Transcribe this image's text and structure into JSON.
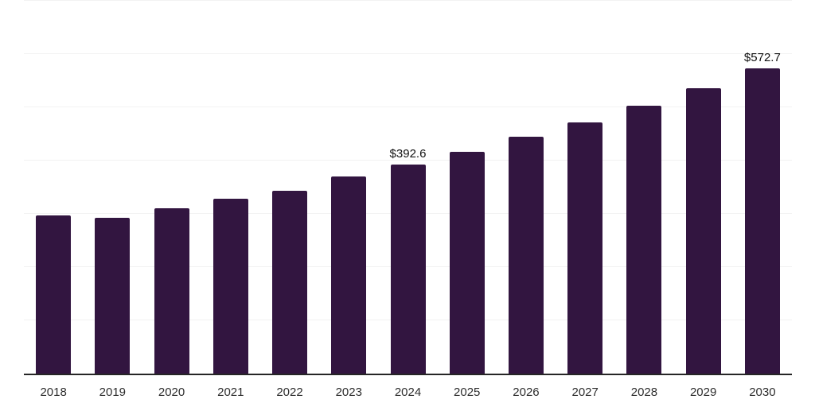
{
  "chart_data": {
    "type": "bar",
    "categories": [
      "2018",
      "2019",
      "2020",
      "2021",
      "2022",
      "2023",
      "2024",
      "2025",
      "2026",
      "2027",
      "2028",
      "2029",
      "2030"
    ],
    "values": [
      297.0,
      293.3,
      309.8,
      328.4,
      343.4,
      370.2,
      392.6,
      416.5,
      444.4,
      471.3,
      503.1,
      535.9,
      572.7
    ],
    "data_labels": [
      {
        "category": "2024",
        "text": "$392.6"
      },
      {
        "category": "2030",
        "text": "$572.7"
      }
    ],
    "value_prefix": "$",
    "ylim": [
      0,
      700
    ],
    "gridline_step": 100,
    "grid": true,
    "legend": "none",
    "colors": {
      "bar": "#321540",
      "gridline": "#f2f2f2",
      "axis_line": "#262626",
      "tick_label": "#2e2e2e",
      "data_label": "#111111",
      "background": "#ffffff"
    }
  }
}
